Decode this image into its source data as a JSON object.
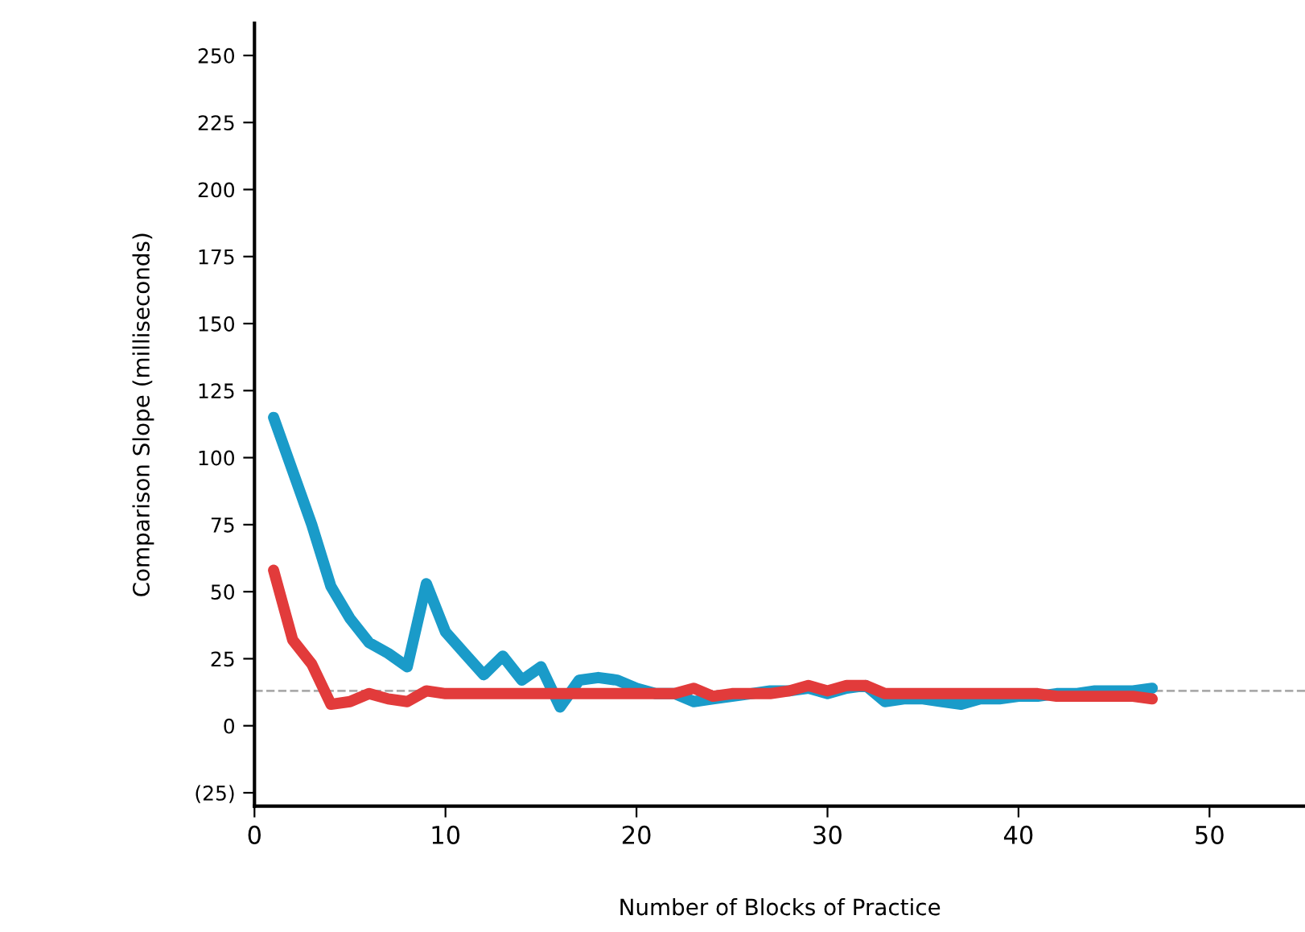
{
  "chart_data": {
    "type": "line",
    "xlabel": "Number of Blocks of Practice",
    "ylabel": "Comparison Slope (milliseconds)",
    "xlim": [
      0,
      55
    ],
    "ylim": [
      -30,
      262
    ],
    "xticks": [
      0,
      10,
      20,
      30,
      40,
      50
    ],
    "yticks": [
      {
        "value": -25,
        "label": "(25)"
      },
      0,
      25,
      50,
      75,
      100,
      125,
      150,
      175,
      200,
      225,
      250
    ],
    "x": [
      1,
      2,
      3,
      4,
      5,
      6,
      7,
      8,
      9,
      10,
      11,
      12,
      13,
      14,
      15,
      16,
      17,
      18,
      19,
      20,
      21,
      22,
      23,
      24,
      25,
      26,
      27,
      28,
      29,
      30,
      31,
      32,
      33,
      34,
      35,
      36,
      37,
      38,
      39,
      40,
      41,
      42,
      43,
      44,
      45,
      46,
      47
    ],
    "series": [
      {
        "color": "#1a9bc9",
        "values": [
          115,
          95,
          75,
          52,
          40,
          31,
          27,
          22,
          53,
          35,
          27,
          19,
          26,
          17,
          22,
          7,
          17,
          18,
          17,
          14,
          12,
          12,
          9,
          10,
          11,
          12,
          13,
          13,
          14,
          12,
          14,
          15,
          9,
          10,
          10,
          9,
          8,
          10,
          10,
          11,
          11,
          12,
          12,
          13,
          13,
          13,
          14
        ]
      },
      {
        "color": "#e23b3b",
        "values": [
          58,
          32,
          23,
          8,
          9,
          12,
          10,
          9,
          13,
          12,
          12,
          12,
          12,
          12,
          12,
          12,
          12,
          12,
          12,
          12,
          12,
          12,
          14,
          11,
          12,
          12,
          12,
          13,
          15,
          13,
          15,
          15,
          12,
          12,
          12,
          12,
          12,
          12,
          12,
          12,
          12,
          11,
          11,
          11,
          11,
          11,
          10
        ]
      }
    ],
    "ref_lines": [
      {
        "axis": "y",
        "value": 13,
        "color": "#aaaaaa",
        "line_style": "dashed"
      }
    ],
    "grid": false,
    "legend": false,
    "marker": "none",
    "line_style": "solid"
  }
}
